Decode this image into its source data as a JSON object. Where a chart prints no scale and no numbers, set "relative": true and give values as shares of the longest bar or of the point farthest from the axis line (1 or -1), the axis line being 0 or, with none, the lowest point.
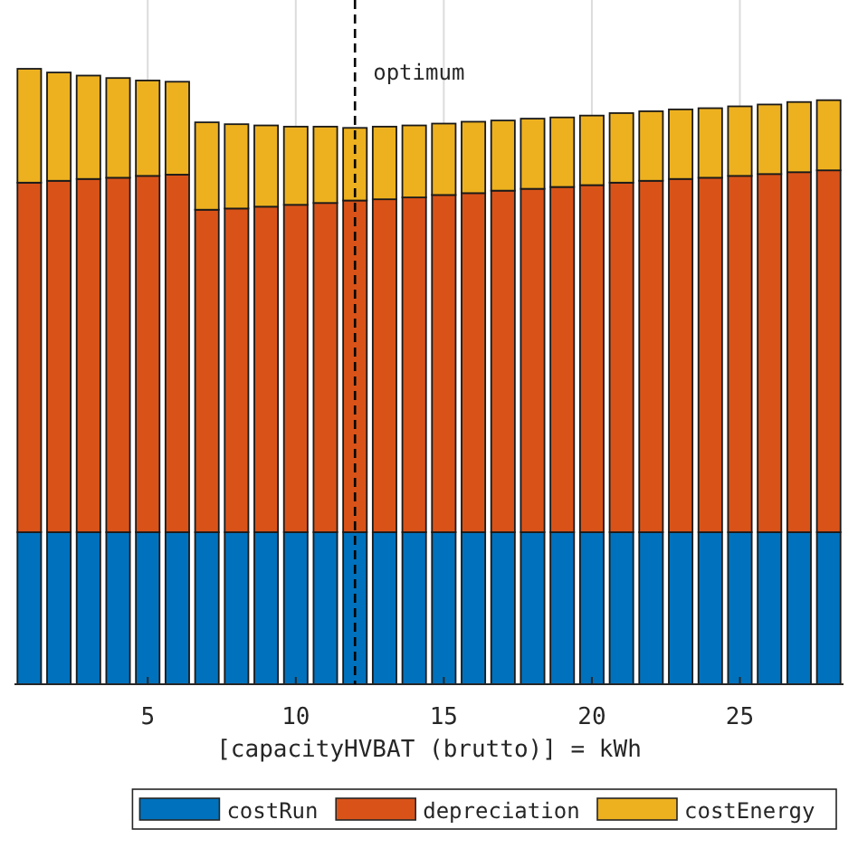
{
  "chart_data": {
    "type": "bar",
    "stacked": true,
    "relative": true,
    "xlabel": "[capacityHVBAT (brutto)] = kWh",
    "x": [
      1,
      2,
      3,
      4,
      5,
      6,
      7,
      8,
      9,
      10,
      11,
      12,
      13,
      14,
      15,
      16,
      17,
      18,
      19,
      20,
      21,
      22,
      23,
      24,
      25,
      26,
      27,
      28
    ],
    "xlim": [
      0.5,
      28.5
    ],
    "xticks": [
      5,
      10,
      15,
      20,
      25
    ],
    "grid": "x",
    "legend": "bottom",
    "series": [
      {
        "name": "costRun",
        "color": "#0072bd",
        "values": [
          0.247,
          0.247,
          0.247,
          0.247,
          0.247,
          0.247,
          0.247,
          0.247,
          0.247,
          0.247,
          0.247,
          0.247,
          0.247,
          0.247,
          0.247,
          0.247,
          0.247,
          0.247,
          0.247,
          0.247,
          0.247,
          0.247,
          0.247,
          0.247,
          0.247,
          0.247,
          0.247,
          0.247
        ]
      },
      {
        "name": "depreciation",
        "color": "#d95319",
        "values": [
          0.568,
          0.571,
          0.574,
          0.576,
          0.579,
          0.581,
          0.524,
          0.526,
          0.529,
          0.532,
          0.535,
          0.539,
          0.541,
          0.544,
          0.548,
          0.551,
          0.555,
          0.558,
          0.561,
          0.564,
          0.568,
          0.571,
          0.574,
          0.576,
          0.579,
          0.582,
          0.585,
          0.588
        ]
      },
      {
        "name": "costEnergy",
        "color": "#edb120",
        "values": [
          0.185,
          0.176,
          0.168,
          0.162,
          0.155,
          0.151,
          0.142,
          0.137,
          0.132,
          0.127,
          0.124,
          0.118,
          0.118,
          0.117,
          0.116,
          0.116,
          0.114,
          0.114,
          0.113,
          0.113,
          0.113,
          0.113,
          0.113,
          0.113,
          0.113,
          0.113,
          0.114,
          0.114
        ]
      }
    ],
    "ref_lines": [
      {
        "axis": "x",
        "value": 12,
        "label": "optimum",
        "color": "#000000",
        "line_style": "dashed"
      }
    ]
  }
}
